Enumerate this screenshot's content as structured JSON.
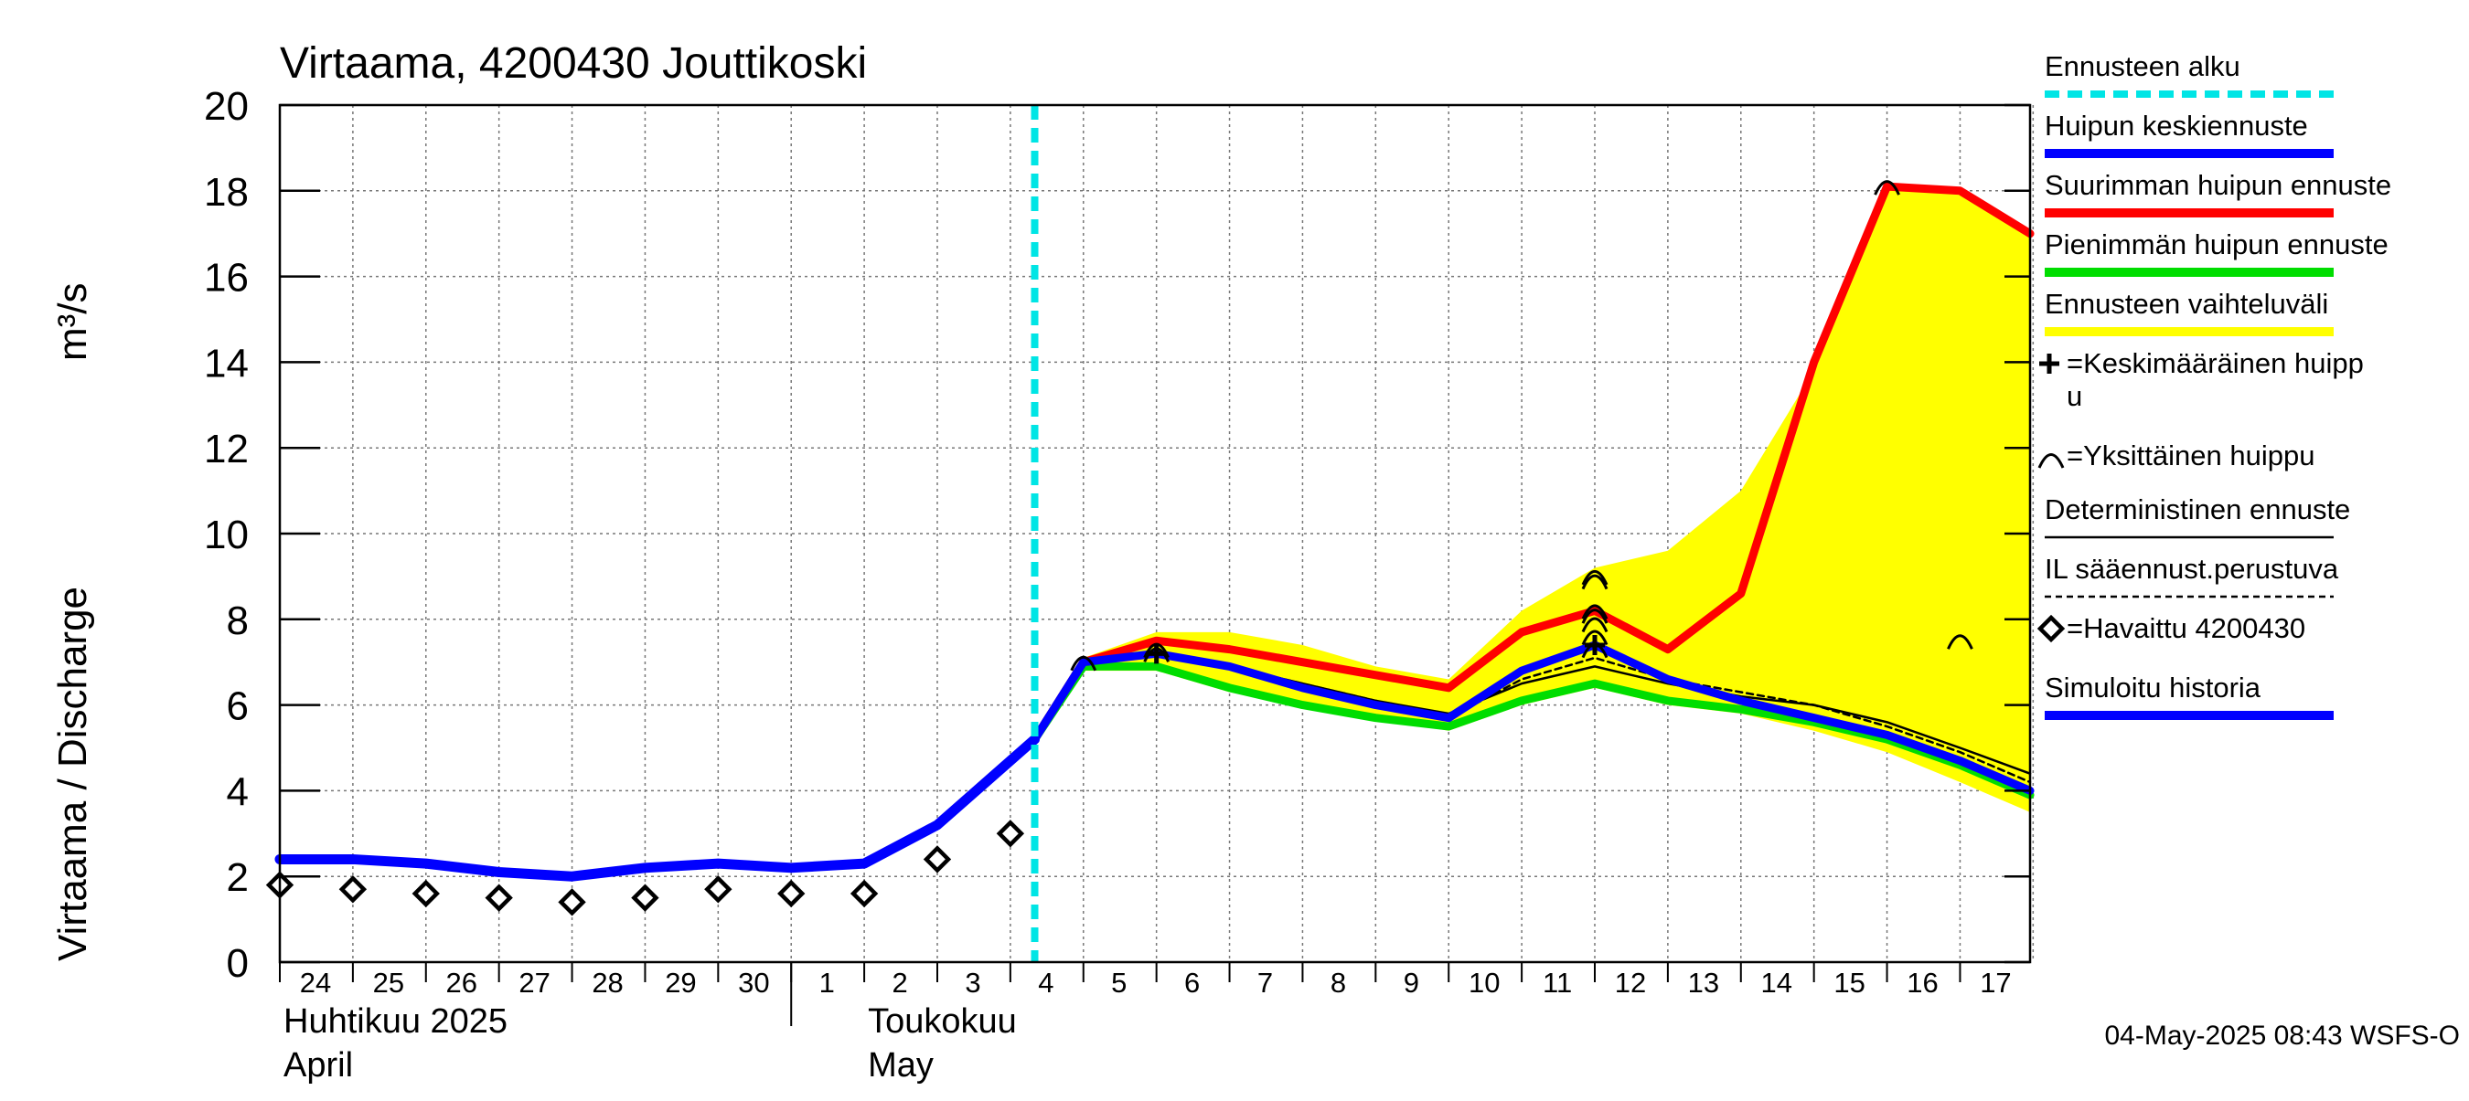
{
  "chart_data": {
    "type": "line",
    "title": "Virtaama, 4200430 Jouttikoski",
    "ylabel": "Virtaama / Discharge",
    "yunit": "m³/s",
    "ylim": [
      0,
      20
    ],
    "yticks": [
      0,
      2,
      4,
      6,
      8,
      10,
      12,
      14,
      16,
      18,
      20
    ],
    "xlim": [
      "2025-04-24",
      "2025-05-17T23:00"
    ],
    "grid": true,
    "day_labels": [
      {
        "date": "2025-04-24",
        "label": "24"
      },
      {
        "date": "2025-04-25",
        "label": "25"
      },
      {
        "date": "2025-04-26",
        "label": "26"
      },
      {
        "date": "2025-04-27",
        "label": "27"
      },
      {
        "date": "2025-04-28",
        "label": "28"
      },
      {
        "date": "2025-04-29",
        "label": "29"
      },
      {
        "date": "2025-04-30",
        "label": "30"
      },
      {
        "date": "2025-05-01",
        "label": "1"
      },
      {
        "date": "2025-05-02",
        "label": "2"
      },
      {
        "date": "2025-05-03",
        "label": "3"
      },
      {
        "date": "2025-05-04",
        "label": "4"
      },
      {
        "date": "2025-05-05",
        "label": "5"
      },
      {
        "date": "2025-05-06",
        "label": "6"
      },
      {
        "date": "2025-05-07",
        "label": "7"
      },
      {
        "date": "2025-05-08",
        "label": "8"
      },
      {
        "date": "2025-05-09",
        "label": "9"
      },
      {
        "date": "2025-05-10",
        "label": "10"
      },
      {
        "date": "2025-05-11",
        "label": "11"
      },
      {
        "date": "2025-05-12",
        "label": "12"
      },
      {
        "date": "2025-05-13",
        "label": "13"
      },
      {
        "date": "2025-05-14",
        "label": "14"
      },
      {
        "date": "2025-05-15",
        "label": "15"
      },
      {
        "date": "2025-05-16",
        "label": "16"
      },
      {
        "date": "2025-05-17",
        "label": "17"
      }
    ],
    "month_labels": [
      {
        "date": "2025-04-24",
        "line1": "Huhtikuu  2025",
        "line2": "April"
      },
      {
        "date": "2025-05-02",
        "line1": "Toukokuu",
        "line2": "May"
      }
    ],
    "month_boundary": "2025-05-01",
    "forecast_start": "2025-05-04T08:00",
    "timestamp": "04-May-2025 08:43 WSFS-O",
    "series": [
      {
        "name": "Ennusteen vaihteluväli",
        "kind": "band",
        "color": "#ffff00",
        "x": [
          "2025-05-05",
          "2025-05-06",
          "2025-05-07",
          "2025-05-08",
          "2025-05-09",
          "2025-05-10",
          "2025-05-11",
          "2025-05-12",
          "2025-05-13",
          "2025-05-14",
          "2025-05-15",
          "2025-05-16",
          "2025-05-17",
          "2025-05-17T23:00"
        ],
        "upper": [
          7.1,
          7.7,
          7.7,
          7.4,
          6.9,
          6.6,
          8.2,
          9.2,
          9.6,
          11.0,
          13.8,
          18.2,
          18.0,
          17.0
        ],
        "lower": [
          6.8,
          6.8,
          6.3,
          6.0,
          5.7,
          5.4,
          6.0,
          6.4,
          6.0,
          5.8,
          5.4,
          4.9,
          4.2,
          3.5
        ]
      },
      {
        "name": "Suurimman huipun ennuste",
        "kind": "line",
        "color": "#ff0000",
        "x": [
          "2025-05-04T08:00",
          "2025-05-05",
          "2025-05-06",
          "2025-05-07",
          "2025-05-08",
          "2025-05-09",
          "2025-05-10",
          "2025-05-11",
          "2025-05-12",
          "2025-05-13",
          "2025-05-14",
          "2025-05-15",
          "2025-05-16",
          "2025-05-17",
          "2025-05-17T23:00"
        ],
        "y": [
          5.2,
          7.0,
          7.5,
          7.3,
          7.0,
          6.7,
          6.4,
          7.7,
          8.2,
          7.3,
          8.6,
          14.0,
          18.1,
          18.0,
          17.0
        ]
      },
      {
        "name": "Pienimmän huipun ennuste",
        "kind": "line",
        "color": "#00dd00",
        "x": [
          "2025-05-04T08:00",
          "2025-05-05",
          "2025-05-06",
          "2025-05-07",
          "2025-05-08",
          "2025-05-09",
          "2025-05-10",
          "2025-05-11",
          "2025-05-12",
          "2025-05-13",
          "2025-05-14",
          "2025-05-15",
          "2025-05-16",
          "2025-05-17",
          "2025-05-17T23:00"
        ],
        "y": [
          5.2,
          6.9,
          6.9,
          6.4,
          6.0,
          5.7,
          5.5,
          6.1,
          6.5,
          6.1,
          5.9,
          5.6,
          5.2,
          4.6,
          3.9
        ]
      },
      {
        "name": "Deterministinen ennuste",
        "kind": "line",
        "color": "#000000",
        "x": [
          "2025-05-04T08:00",
          "2025-05-05",
          "2025-05-06",
          "2025-05-07",
          "2025-05-08",
          "2025-05-09",
          "2025-05-10",
          "2025-05-11",
          "2025-05-12",
          "2025-05-13",
          "2025-05-14",
          "2025-05-15",
          "2025-05-16",
          "2025-05-17",
          "2025-05-17T23:00"
        ],
        "y": [
          5.2,
          7.0,
          7.2,
          6.9,
          6.5,
          6.1,
          5.8,
          6.5,
          6.9,
          6.5,
          6.2,
          6.0,
          5.6,
          5.0,
          4.4
        ]
      },
      {
        "name": "IL sääennust.perustuva",
        "kind": "line",
        "color": "#000000",
        "dashed": true,
        "x": [
          "2025-05-04T08:00",
          "2025-05-05",
          "2025-05-06",
          "2025-05-07",
          "2025-05-08",
          "2025-05-09",
          "2025-05-10",
          "2025-05-11",
          "2025-05-12",
          "2025-05-13",
          "2025-05-14",
          "2025-05-15",
          "2025-05-16",
          "2025-05-17",
          "2025-05-17T23:00"
        ],
        "y": [
          5.2,
          7.0,
          7.2,
          6.9,
          6.5,
          6.1,
          5.7,
          6.6,
          7.1,
          6.6,
          6.3,
          6.0,
          5.5,
          4.9,
          4.2
        ]
      },
      {
        "name": "Huipun keskiennuste",
        "kind": "line",
        "color": "#0000ff",
        "x": [
          "2025-05-04T08:00",
          "2025-05-05",
          "2025-05-06",
          "2025-05-07",
          "2025-05-08",
          "2025-05-09",
          "2025-05-10",
          "2025-05-11",
          "2025-05-12",
          "2025-05-13",
          "2025-05-14",
          "2025-05-15",
          "2025-05-16",
          "2025-05-17",
          "2025-05-17T23:00"
        ],
        "y": [
          5.2,
          7.0,
          7.2,
          6.9,
          6.4,
          6.0,
          5.7,
          6.8,
          7.4,
          6.6,
          6.1,
          5.7,
          5.3,
          4.7,
          4.0
        ]
      },
      {
        "name": "Simuloitu historia",
        "kind": "line",
        "color": "#0000ff",
        "x": [
          "2025-04-24",
          "2025-04-25",
          "2025-04-26",
          "2025-04-27",
          "2025-04-28",
          "2025-04-29",
          "2025-04-30",
          "2025-05-01",
          "2025-05-02",
          "2025-05-03",
          "2025-05-04T08:00"
        ],
        "y": [
          2.4,
          2.4,
          2.3,
          2.1,
          2.0,
          2.2,
          2.3,
          2.2,
          2.3,
          3.2,
          5.2
        ]
      },
      {
        "name": "Havaittu 4200430",
        "kind": "markers",
        "marker": "diamond",
        "color": "#000000",
        "x": [
          "2025-04-24",
          "2025-04-25",
          "2025-04-26",
          "2025-04-27",
          "2025-04-28",
          "2025-04-29",
          "2025-04-30",
          "2025-05-01",
          "2025-05-02",
          "2025-05-03",
          "2025-05-04"
        ],
        "y": [
          1.8,
          1.7,
          1.6,
          1.5,
          1.4,
          1.5,
          1.7,
          1.6,
          1.6,
          2.4,
          3.0
        ]
      },
      {
        "name": "Yksittäinen huippu",
        "kind": "markers",
        "marker": "arc",
        "color": "#000000",
        "x": [
          "2025-05-05",
          "2025-05-06",
          "2025-05-06",
          "2025-05-12",
          "2025-05-12",
          "2025-05-12",
          "2025-05-12",
          "2025-05-12",
          "2025-05-12",
          "2025-05-12",
          "2025-05-16",
          "2025-05-17"
        ],
        "y": [
          7.0,
          7.2,
          7.3,
          7.3,
          7.6,
          7.9,
          8.1,
          8.2,
          8.9,
          9.0,
          18.1,
          7.5
        ]
      },
      {
        "name": "Keskimääräinen huippu",
        "kind": "markers",
        "marker": "plus",
        "color": "#000000",
        "x": [
          "2025-05-06",
          "2025-05-12"
        ],
        "y": [
          7.2,
          7.4
        ]
      }
    ],
    "legend": {
      "placement": "right",
      "entries": [
        {
          "label": "Ennusteen alku",
          "symbol": "dashed-line",
          "color": "#00e5e5"
        },
        {
          "label": "Huipun keskiennuste",
          "symbol": "line",
          "color": "#0000ff"
        },
        {
          "label": "Suurimman huipun ennuste",
          "symbol": "line",
          "color": "#ff0000"
        },
        {
          "label": "Pienimmän huipun ennuste",
          "symbol": "line",
          "color": "#00dd00"
        },
        {
          "label": "Ennusteen vaihteluväli",
          "symbol": "line",
          "color": "#ffff00"
        },
        {
          "label": "=Keskimääräinen huipp",
          "label_line2": "u",
          "symbol": "plus",
          "color": "#000000"
        },
        {
          "label": "=Yksittäinen huippu",
          "symbol": "arc",
          "color": "#000000"
        },
        {
          "label": "Deterministinen ennuste",
          "symbol": "thin-line",
          "color": "#000000"
        },
        {
          "label": "IL sääennust.perustuva",
          "symbol": "dashed-thin",
          "color": "#000000"
        },
        {
          "label": "=Havaittu 4200430",
          "symbol": "diamond",
          "color": "#000000"
        },
        {
          "label": "Simuloitu historia",
          "symbol": "line",
          "color": "#0000ff"
        }
      ]
    }
  }
}
